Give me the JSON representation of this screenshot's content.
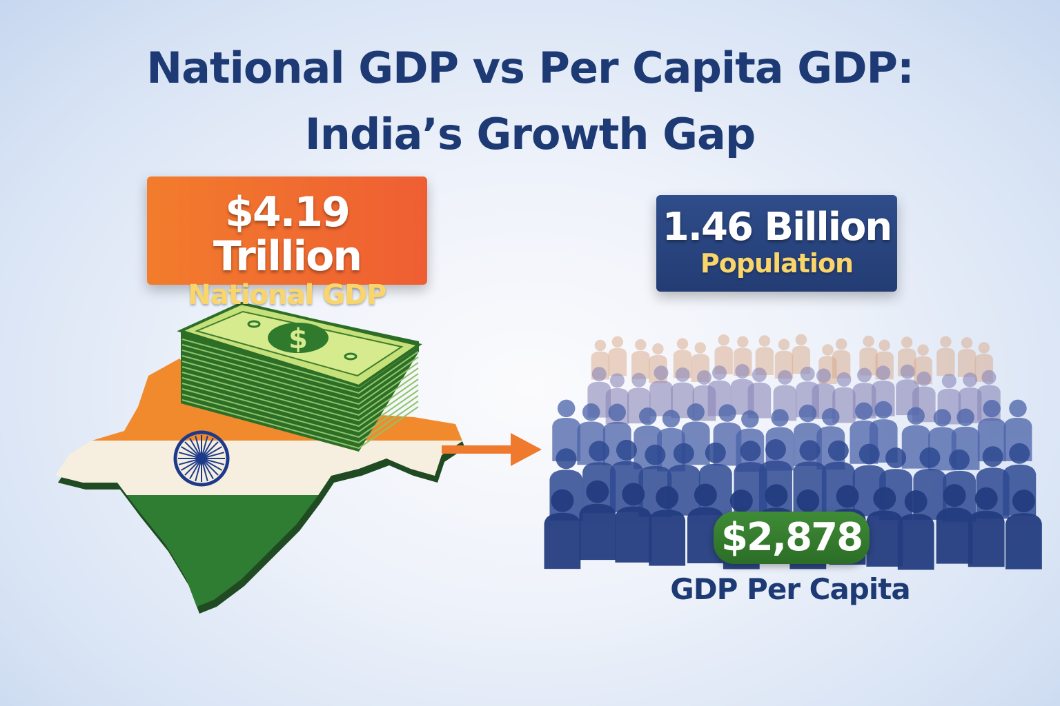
{
  "title": {
    "line1": "National GDP vs Per Capita GDP:",
    "line2": "India’s Growth Gap"
  },
  "national_gdp": {
    "value": "$4.19 Trillion",
    "label": "National GDP"
  },
  "population": {
    "value": "1.46 Billion",
    "label": "Population"
  },
  "per_capita": {
    "value": "$2,878",
    "label": "GDP Per Capita"
  },
  "colors": {
    "title": "#1d3a74",
    "orange": "#ef6a30",
    "navy": "#2a4580",
    "gold": "#f9d56a",
    "green": "#3a8331"
  },
  "icons": [
    "india-map-icon",
    "money-stack-icon",
    "arrow-right-icon",
    "crowd-icon"
  ]
}
